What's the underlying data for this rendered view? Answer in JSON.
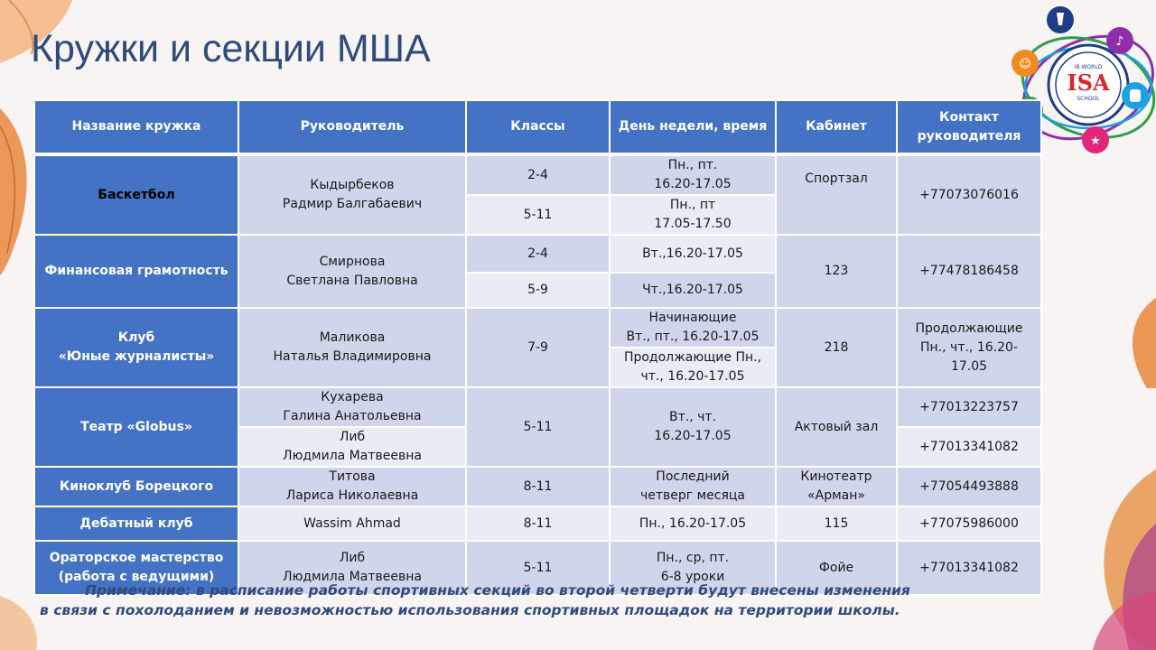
{
  "title": "Кружки и секции МША",
  "logo": {
    "text_top": "ISA",
    "text_small": "IB WORLD",
    "text_school": "SCHOOL",
    "colors": [
      "#1f3c88",
      "#8e2fa8",
      "#1aa1e0",
      "#e2267b",
      "#2f9e44",
      "#f08c1e"
    ]
  },
  "table": {
    "headers": {
      "name": "Название кружка",
      "teacher": "Руководитель",
      "grades": "Классы",
      "time": "День недели, время",
      "room": "Кабинет",
      "contact": "Контакт руководителя"
    },
    "rows": {
      "basketball": {
        "name": "Баскетбол",
        "teacher": "Кыдырбеков\nРадмир Балгабаевич",
        "grades1": "2-4",
        "time1": "Пн., пт.\n16.20-17.05",
        "grades2": "5-11",
        "time2": "Пн., пт\n17.05-17.50",
        "room": "Спортзал",
        "contact": "+77073076016"
      },
      "finance": {
        "name": "Финансовая грамотность",
        "teacher": "Смирнова\nСветлана  Павловна",
        "grades1": "2-4",
        "time1": "Вт.,16.20-17.05",
        "grades2": "5-9",
        "time2": "Чт.,16.20-17.05",
        "room": "123",
        "contact": "+77478186458"
      },
      "journalists": {
        "name": "Клуб\n«Юные журналисты»",
        "teacher": "Маликова\nНаталья Владимировна",
        "grades": "7-9",
        "time1": "Начинающие\nВт., пт., 16.20-17.05",
        "time2": "Продолжающие Пн.,\nчт., 16.20-17.05",
        "room": "218",
        "contact": "Продолжающие\nПн.,  чт., 16.20-\n17.05"
      },
      "theatre": {
        "name": "Театр «Globus»",
        "teacher1": "Кухарева\nГалина  Анатольевна",
        "teacher2": "Либ\nЛюдмила Матвеевна",
        "grades": "5-11",
        "time": "Вт.,  чт.\n16.20-17.05",
        "room": "Актовый зал",
        "contact1": "+77013223757",
        "contact2": "+77013341082"
      },
      "cinema": {
        "name": "Киноклуб Борецкого",
        "teacher": "Титова\nЛариса Николаевна",
        "grades": "8-11",
        "time": "Последний\nчетверг месяца",
        "room": "Кинотеатр\n«Арман»",
        "contact": "+77054493888"
      },
      "debate": {
        "name": "Дебатный клуб",
        "teacher": "Wassim Ahmad",
        "grades": "8-11",
        "time": "Пн., 16.20-17.05",
        "room": "115",
        "contact": "+77075986000"
      },
      "oratory": {
        "name": "Ораторское мастерство\n(работа с ведущими)",
        "teacher": "Либ\nЛюдмила  Матвеевна",
        "grades": "5-11",
        "time": "Пн., ср, пт.\n6-8 уроки",
        "room": "Фойе",
        "contact": "+77013341082"
      }
    }
  },
  "note": {
    "line1": "Примечание: в расписание работы спортивных секций во второй четверти будут внесены изменения",
    "line2": "в связи с похолоданием и невозможностью использования спортивных площадок на территории школы."
  },
  "colors": {
    "header_blue": "#4472c4",
    "row_light": "#cfd5ea",
    "row_lighter": "#e9ebf5",
    "title_blue": "#2f4b7c"
  }
}
